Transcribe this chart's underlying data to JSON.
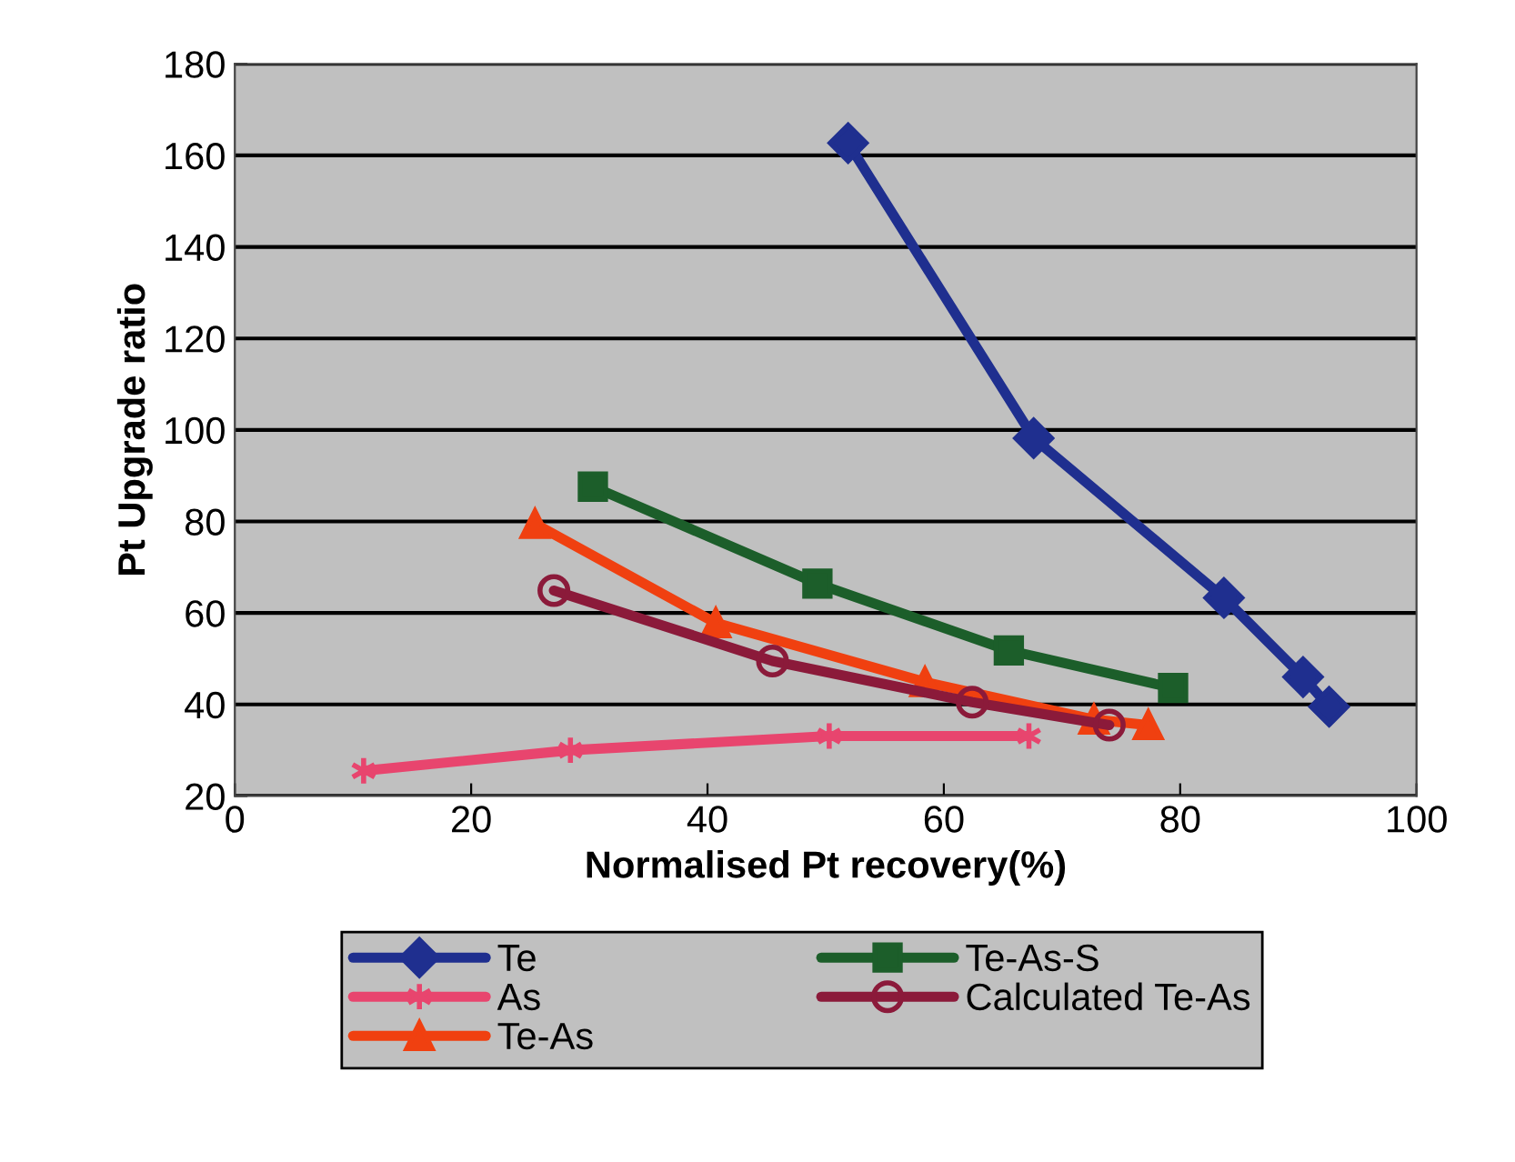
{
  "chart_data": {
    "type": "line",
    "xlabel": "Normalised Pt recovery(%)",
    "ylabel": "Pt Upgrade ratio",
    "xlim": [
      0,
      100
    ],
    "xticks": [
      0,
      20,
      40,
      60,
      80,
      100
    ],
    "ylim": [
      20,
      180
    ],
    "yticks": [
      20,
      40,
      60,
      80,
      100,
      120,
      140,
      160,
      180
    ],
    "grid": "y",
    "legend": "bottom",
    "line_style": "solid",
    "series": [
      {
        "name": "Te",
        "color": "#1f2f8f",
        "marker": "diamond",
        "x": [
          51.9,
          67.6,
          83.7,
          90.4,
          92.6
        ],
        "values": [
          162.7,
          98.2,
          63.3,
          46.0,
          39.5
        ]
      },
      {
        "name": "As",
        "color": "#e8456e",
        "marker": "cross",
        "x": [
          10.9,
          28.4,
          50.3,
          67.2
        ],
        "values": [
          25.5,
          30.0,
          33.1,
          33.1
        ]
      },
      {
        "name": "Te-As",
        "color": "#f04010",
        "marker": "triangle",
        "x": [
          25.4,
          40.7,
          58.4,
          72.7,
          77.3
        ],
        "values": [
          79.5,
          57.8,
          44.9,
          36.7,
          35.5
        ]
      },
      {
        "name": "Te-As-S",
        "color": "#1c5e2a",
        "marker": "square",
        "x": [
          30.3,
          49.3,
          65.5,
          79.4
        ],
        "values": [
          87.6,
          66.4,
          51.8,
          43.6
        ]
      },
      {
        "name": "Calculated Te-As",
        "color": "#8b1a3a",
        "marker": "circle",
        "x": [
          27.0,
          45.5,
          62.4,
          74.0
        ],
        "values": [
          64.9,
          49.5,
          40.5,
          35.5
        ]
      }
    ]
  }
}
